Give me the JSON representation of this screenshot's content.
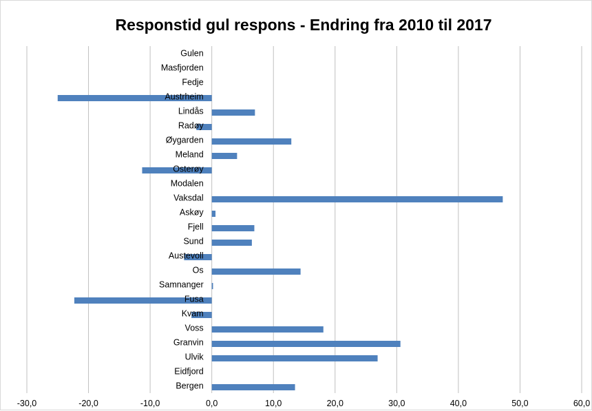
{
  "chart_data": {
    "type": "bar",
    "orientation": "horizontal",
    "title": "Responstid gul respons - Endring fra 2010 til 2017",
    "categories": [
      "Gulen",
      "Masfjorden",
      "Fedje",
      "Austrheim",
      "Lindås",
      "Radøy",
      "Øygarden",
      "Meland",
      "Osterøy",
      "Modalen",
      "Vaksdal",
      "Askøy",
      "Fjell",
      "Sund",
      "Austevoll",
      "Os",
      "Samnanger",
      "Fusa",
      "Kvam",
      "Voss",
      "Granvin",
      "Ulvik",
      "Eidfjord",
      "Bergen"
    ],
    "values": [
      0,
      0,
      0,
      -25.0,
      7.0,
      -2.5,
      12.9,
      4.1,
      -11.3,
      0,
      47.2,
      0.6,
      6.9,
      6.5,
      -4.5,
      14.4,
      0.2,
      -22.3,
      -3.3,
      18.1,
      30.6,
      26.9,
      0,
      13.5
    ],
    "xlim": [
      -30,
      60
    ],
    "xticks": [
      "-30,0",
      "-20,0",
      "-10,0",
      "0,0",
      "10,0",
      "20,0",
      "30,0",
      "40,0",
      "50,0",
      "60,0"
    ],
    "grid": "vertical",
    "legend": "none",
    "bar_color": "#4f81bd",
    "grid_color": "#bfbfbf"
  }
}
